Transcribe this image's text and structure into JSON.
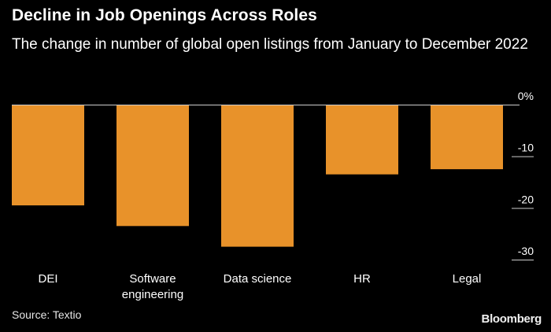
{
  "header": {
    "title": "Decline in Job Openings Across Roles",
    "subtitle": "The change in number of global open listings from January to December 2022"
  },
  "footer": {
    "source": "Source: Textio",
    "brand": "Bloomberg"
  },
  "colors": {
    "background": "#000000",
    "bar": "#E8922A",
    "text": "#FFFFFF",
    "axis": "#CCCCCC"
  },
  "chart_data": {
    "type": "bar",
    "categories": [
      [
        "DEI"
      ],
      [
        "Software",
        "engineering"
      ],
      [
        "Data science"
      ],
      [
        "HR"
      ],
      [
        "Legal"
      ]
    ],
    "values": [
      -19.5,
      -23.5,
      -27.5,
      -13.5,
      -12.5
    ],
    "ylim": [
      -30,
      0
    ],
    "yticks": [
      0,
      -10,
      -20,
      -30
    ],
    "ytick_labels": [
      "0%",
      "-10",
      "-20",
      "-30"
    ],
    "title": "Decline in Job Openings Across Roles",
    "subtitle": "The change in number of global open listings from January to December 2022",
    "xlabel": "",
    "ylabel": "",
    "grid": false,
    "y_axis_position": "right"
  }
}
